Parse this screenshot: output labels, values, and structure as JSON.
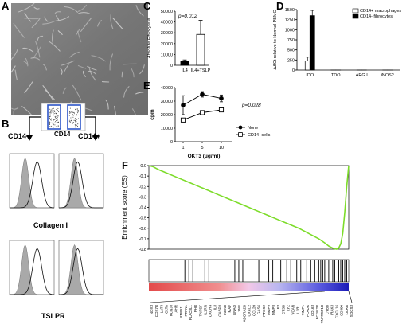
{
  "panels": {
    "A": {
      "label": "A"
    },
    "B": {
      "label": "B",
      "gate_axis_label": "CD14",
      "left_arrow_label": "CD14-",
      "right_arrow_label": "CD14+",
      "row1_label": "Collagen I",
      "row2_label": "TSLPR"
    },
    "C": {
      "label": "C"
    },
    "D": {
      "label": "D"
    },
    "E": {
      "label": "E"
    },
    "F": {
      "label": "F"
    }
  },
  "chart_data": [
    {
      "panel": "C",
      "type": "bar",
      "categories": [
        "IL4",
        "IL4+TSLP"
      ],
      "values": [
        3500,
        28500
      ],
      "errors": [
        1500,
        13000
      ],
      "bar_colors": [
        "#000000",
        "#ffffff"
      ],
      "ylabel": "Absolute Fibrocyte #",
      "ylim": [
        0,
        50000
      ],
      "yticks": [
        "0",
        "10000",
        "20000",
        "30000",
        "40000",
        "50000"
      ],
      "annotation": "p=0.012"
    },
    {
      "panel": "D",
      "type": "bar",
      "categories": [
        "IDO",
        "TDO",
        "ARG I",
        "iNOS2"
      ],
      "series": [
        {
          "name": "CD14+ macrophages",
          "color": "#ffffff",
          "values": [
            230,
            0,
            0,
            0
          ],
          "errors": [
            90,
            0,
            0,
            0
          ]
        },
        {
          "name": "CD14- fibrocytes",
          "color": "#000000",
          "values": [
            1350,
            0,
            0,
            0
          ],
          "errors": [
            130,
            0,
            0,
            0
          ]
        }
      ],
      "ylabel": "ΔΔCt relative to Normal PBMC",
      "ylim": [
        0,
        1500
      ],
      "yticks": [
        "0",
        "250",
        "500",
        "750",
        "1000",
        "1250",
        "1500"
      ],
      "legend_position": "top-right"
    },
    {
      "panel": "E",
      "type": "line",
      "x": [
        "1",
        "5",
        "10"
      ],
      "xlabel": "OKT3 (ug/ml)",
      "ylabel": "cpm",
      "ylim": [
        0,
        40000
      ],
      "yticks": [
        "0",
        "10000",
        "20000",
        "30000",
        "40000"
      ],
      "series": [
        {
          "name": "None",
          "marker": "filled-circle",
          "values": [
            27000,
            35000,
            32000
          ],
          "errors": [
            7000,
            2000,
            2500
          ]
        },
        {
          "name": "CD14- cells",
          "marker": "open-square",
          "values": [
            16000,
            21500,
            23500
          ],
          "errors": [
            0,
            0,
            0
          ]
        }
      ],
      "annotation": "p=0.028",
      "legend_position": "bottom-right"
    },
    {
      "panel": "F",
      "type": "line",
      "ylabel": "Enrichment score (ES)",
      "ylim": [
        -0.8,
        0.0
      ],
      "yticks": [
        "0.0",
        "-0.1",
        "-0.2",
        "-0.3",
        "-0.4",
        "-0.5",
        "-0.6",
        "-0.7",
        "-0.8"
      ],
      "series": [
        {
          "name": "ES",
          "color": "#7ddc2a",
          "x": [
            0,
            0.02,
            0.05,
            0.1,
            0.15,
            0.2,
            0.25,
            0.3,
            0.35,
            0.4,
            0.45,
            0.5,
            0.55,
            0.6,
            0.65,
            0.7,
            0.75,
            0.8,
            0.85,
            0.88,
            0.9,
            0.92,
            0.94,
            0.95,
            0.96,
            0.97,
            0.98,
            0.99,
            1.0
          ],
          "values": [
            0.0,
            -0.01,
            -0.04,
            -0.08,
            -0.12,
            -0.16,
            -0.2,
            -0.24,
            -0.28,
            -0.32,
            -0.36,
            -0.4,
            -0.44,
            -0.48,
            -0.52,
            -0.56,
            -0.6,
            -0.65,
            -0.7,
            -0.74,
            -0.77,
            -0.79,
            -0.8,
            -0.79,
            -0.75,
            -0.65,
            -0.45,
            -0.2,
            0.0
          ]
        }
      ],
      "hit_positions": [
        0.18,
        0.2,
        0.22,
        0.28,
        0.3,
        0.43,
        0.45,
        0.47,
        0.55,
        0.6,
        0.62,
        0.66,
        0.69,
        0.71,
        0.74,
        0.76,
        0.79,
        0.81,
        0.83,
        0.85,
        0.86,
        0.87,
        0.88,
        0.9,
        0.92,
        0.93,
        0.95,
        0.96,
        0.97,
        0.98,
        0.99
      ],
      "genes": [
        "NOX3",
        "COX7B",
        "LAT3",
        "CLTA",
        "KCNJ8",
        "AHR",
        "PTPN11",
        "PTPN1",
        "PLAC8L1",
        "PHB",
        "TNFSF",
        "IL1RN",
        "CXCR4",
        "IL8",
        "CASP8",
        "IKBKB",
        "MAF",
        "GNAQ",
        "ZNF",
        "ADORA2B",
        "CXCL2",
        "CCL20",
        "GAS6",
        "PTGS2",
        "MMP9",
        "MMP8",
        "F3",
        "CTSB",
        "LYZ",
        "VCAN",
        "IL1R1",
        "TIMP1",
        "PLAUR",
        "CD163",
        "FCGR2B",
        "TNFRSF1B",
        "CYBB",
        "IRAK3",
        "CXCL16",
        "CD300",
        "LILRB",
        "SOCS3"
      ]
    }
  ]
}
